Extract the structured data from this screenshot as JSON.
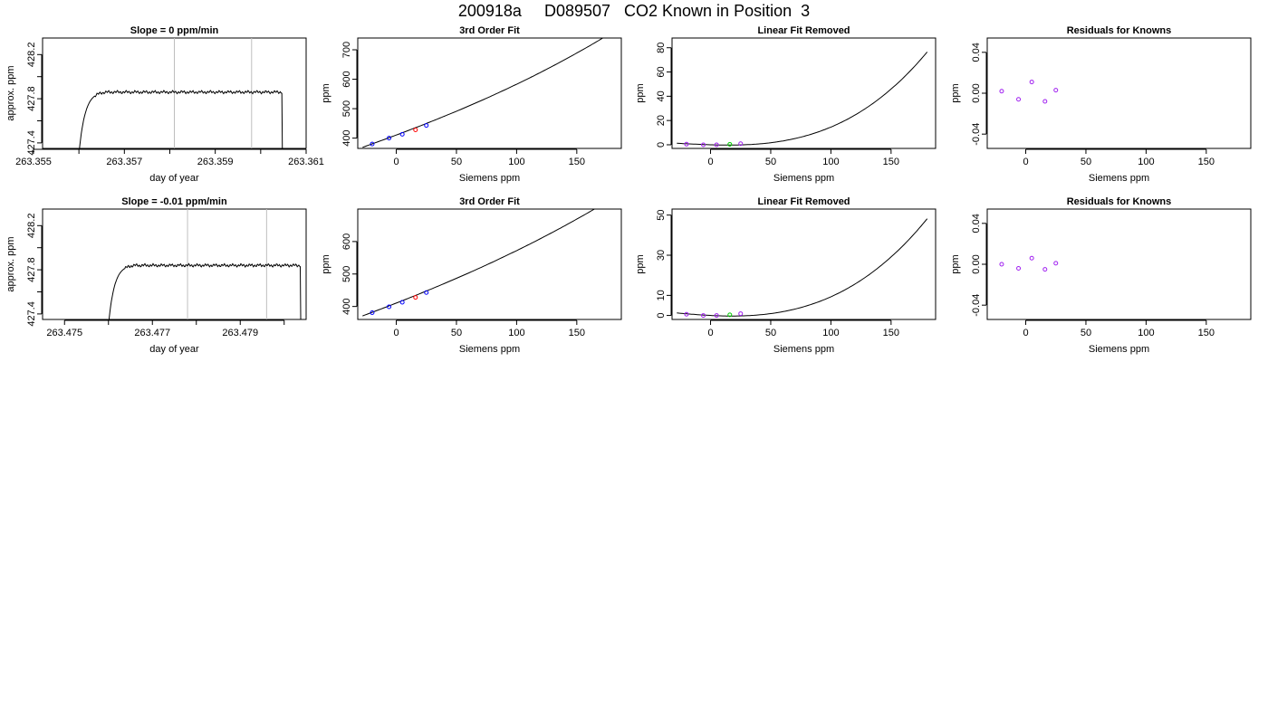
{
  "page_title": "200918a     D089507   CO2 Known in Position  3",
  "colors": {
    "line": "#000000",
    "gridline": "#bebebe",
    "point_blue": "#0000ff",
    "point_purple": "#a020f0",
    "point_red": "#ff0000",
    "point_green": "#00cd00"
  },
  "chart_data": [
    {
      "type": "line",
      "title": "Slope =  0  ppm/min",
      "xlabel": "day of year",
      "ylabel": "approx. ppm",
      "xlim": [
        263.3552,
        263.361
      ],
      "ylim": [
        427.35,
        428.35
      ],
      "xticks": [
        263.355,
        263.356,
        263.357,
        263.358,
        263.359,
        263.36,
        263.361
      ],
      "xticklabels": [
        "263.355",
        "",
        "263.357",
        "",
        "263.359",
        "",
        "263.361"
      ],
      "yticks": [
        427.4,
        427.6,
        427.8,
        428.0,
        428.2
      ],
      "yticklabels": [
        "427.4",
        "",
        "427.8",
        "",
        "428.2"
      ],
      "vlines": [
        263.3581,
        263.3598
      ],
      "trace": {
        "start": 263.356,
        "rise_end": 263.3566,
        "end": 263.3605,
        "base": 427.3,
        "plateau": 427.86,
        "noise": 0.015
      }
    },
    {
      "type": "line",
      "title": "3rd Order Fit",
      "xlabel": "Siemens ppm",
      "ylabel": "ppm",
      "xlim": [
        -32,
        187
      ],
      "ylim": [
        365,
        740
      ],
      "xticks": [
        0,
        50,
        100,
        150
      ],
      "xticklabels": [
        "0",
        "50",
        "100",
        "150"
      ],
      "yticks": [
        400,
        500,
        600,
        700
      ],
      "yticklabels": [
        "400",
        "500",
        "600",
        "700"
      ],
      "curve": {
        "x_from": -28,
        "x_to": 180,
        "coef": [
          410.5,
          1.53,
          0.0015,
          4.5e-06
        ]
      },
      "points": [
        {
          "x": -20,
          "y": 380,
          "color": "blue"
        },
        {
          "x": -6,
          "y": 400,
          "color": "blue"
        },
        {
          "x": 5,
          "y": 413,
          "color": "blue"
        },
        {
          "x": 16,
          "y": 428,
          "color": "red"
        },
        {
          "x": 25,
          "y": 443,
          "color": "blue"
        }
      ]
    },
    {
      "type": "line",
      "title": "Linear Fit Removed",
      "xlabel": "Siemens ppm",
      "ylabel": "ppm",
      "xlim": [
        -32,
        187
      ],
      "ylim": [
        -3,
        88
      ],
      "xticks": [
        0,
        50,
        100,
        150
      ],
      "xticklabels": [
        "0",
        "50",
        "100",
        "150"
      ],
      "yticks": [
        0,
        20,
        40,
        60,
        80
      ],
      "yticklabels": [
        "0",
        "20",
        "40",
        "60",
        "80"
      ],
      "curve": {
        "x_from": -28,
        "x_to": 180,
        "coef": [
          0.0,
          -0.03,
          0.0008,
          9.6e-06
        ]
      },
      "points": [
        {
          "x": -20,
          "y": 0.5,
          "color": "purple"
        },
        {
          "x": -6,
          "y": 0.0,
          "color": "purple"
        },
        {
          "x": 5,
          "y": 0.0,
          "color": "purple"
        },
        {
          "x": 16,
          "y": 0.4,
          "color": "green"
        },
        {
          "x": 25,
          "y": 0.9,
          "color": "purple"
        }
      ]
    },
    {
      "type": "scatter",
      "title": "Residuals for Knowns",
      "xlabel": "Siemens ppm",
      "ylabel": "ppm",
      "xlim": [
        -32,
        187
      ],
      "ylim": [
        -0.054,
        0.054
      ],
      "xticks": [
        0,
        50,
        100,
        150
      ],
      "xticklabels": [
        "0",
        "50",
        "100",
        "150"
      ],
      "yticks": [
        -0.04,
        0.0,
        0.04
      ],
      "yticklabels": [
        "-0.04",
        "0.00",
        "0.04"
      ],
      "points": [
        {
          "x": -20,
          "y": 0.002,
          "color": "purple"
        },
        {
          "x": -6,
          "y": -0.006,
          "color": "purple"
        },
        {
          "x": 5,
          "y": 0.011,
          "color": "purple"
        },
        {
          "x": 16,
          "y": -0.008,
          "color": "purple"
        },
        {
          "x": 25,
          "y": 0.003,
          "color": "purple"
        }
      ]
    },
    {
      "type": "line",
      "title": "Slope =  -0.01  ppm/min",
      "xlabel": "day of year",
      "ylabel": "approx. ppm",
      "xlim": [
        263.4745,
        263.4805
      ],
      "ylim": [
        427.35,
        428.35
      ],
      "xticks": [
        263.475,
        263.476,
        263.477,
        263.478,
        263.479,
        263.48
      ],
      "xticklabels": [
        "263.475",
        "",
        "263.477",
        "",
        "263.479",
        ""
      ],
      "yticks": [
        427.4,
        427.6,
        427.8,
        428.0,
        428.2
      ],
      "yticklabels": [
        "427.4",
        "",
        "427.8",
        "",
        "428.2"
      ],
      "vlines": [
        263.4778,
        263.4796
      ],
      "trace": {
        "start": 263.476,
        "rise_end": 263.4766,
        "end": 263.4804,
        "base": 427.3,
        "plateau": 427.84,
        "noise": 0.015
      }
    },
    {
      "type": "line",
      "title": "3rd Order Fit",
      "xlabel": "Siemens ppm",
      "ylabel": "ppm",
      "xlim": [
        -32,
        187
      ],
      "ylim": [
        360,
        700
      ],
      "xticks": [
        0,
        50,
        100,
        150
      ],
      "xticklabels": [
        "0",
        "50",
        "100",
        "150"
      ],
      "yticks": [
        400,
        500,
        600
      ],
      "yticklabels": [
        "400",
        "500",
        "600"
      ],
      "curve": {
        "x_from": -28,
        "x_to": 180,
        "coef": [
          410.5,
          1.45,
          0.0013,
          3.5e-06
        ]
      },
      "points": [
        {
          "x": -20,
          "y": 381,
          "color": "blue"
        },
        {
          "x": -6,
          "y": 399,
          "color": "blue"
        },
        {
          "x": 5,
          "y": 413,
          "color": "blue"
        },
        {
          "x": 16,
          "y": 428,
          "color": "red"
        },
        {
          "x": 25,
          "y": 443,
          "color": "blue"
        }
      ]
    },
    {
      "type": "line",
      "title": "Linear Fit Removed",
      "xlabel": "Siemens ppm",
      "ylabel": "ppm",
      "xlim": [
        -32,
        187
      ],
      "ylim": [
        -2,
        53
      ],
      "xticks": [
        0,
        50,
        100,
        150
      ],
      "xticklabels": [
        "0",
        "50",
        "100",
        "150"
      ],
      "yticks": [
        0,
        10,
        30,
        50
      ],
      "yticklabels": [
        "0",
        "10",
        "30",
        "50"
      ],
      "curve": {
        "x_from": -28,
        "x_to": 180,
        "coef": [
          0.0,
          -0.03,
          0.0007,
          5.3e-06
        ]
      },
      "points": [
        {
          "x": -20,
          "y": 0.6,
          "color": "purple"
        },
        {
          "x": -6,
          "y": 0.0,
          "color": "purple"
        },
        {
          "x": 5,
          "y": 0.0,
          "color": "purple"
        },
        {
          "x": 16,
          "y": 0.3,
          "color": "green"
        },
        {
          "x": 25,
          "y": 0.9,
          "color": "purple"
        }
      ]
    },
    {
      "type": "scatter",
      "title": "Residuals for Knowns",
      "xlabel": "Siemens ppm",
      "ylabel": "ppm",
      "xlim": [
        -32,
        187
      ],
      "ylim": [
        -0.054,
        0.054
      ],
      "xticks": [
        0,
        50,
        100,
        150
      ],
      "xticklabels": [
        "0",
        "50",
        "100",
        "150"
      ],
      "yticks": [
        -0.04,
        0.0,
        0.04
      ],
      "yticklabels": [
        "-0.04",
        "0.00",
        "0.04"
      ],
      "points": [
        {
          "x": -20,
          "y": 0.0,
          "color": "purple"
        },
        {
          "x": -6,
          "y": -0.004,
          "color": "purple"
        },
        {
          "x": 5,
          "y": 0.006,
          "color": "purple"
        },
        {
          "x": 16,
          "y": -0.005,
          "color": "purple"
        },
        {
          "x": 25,
          "y": 0.001,
          "color": "purple"
        }
      ]
    }
  ]
}
